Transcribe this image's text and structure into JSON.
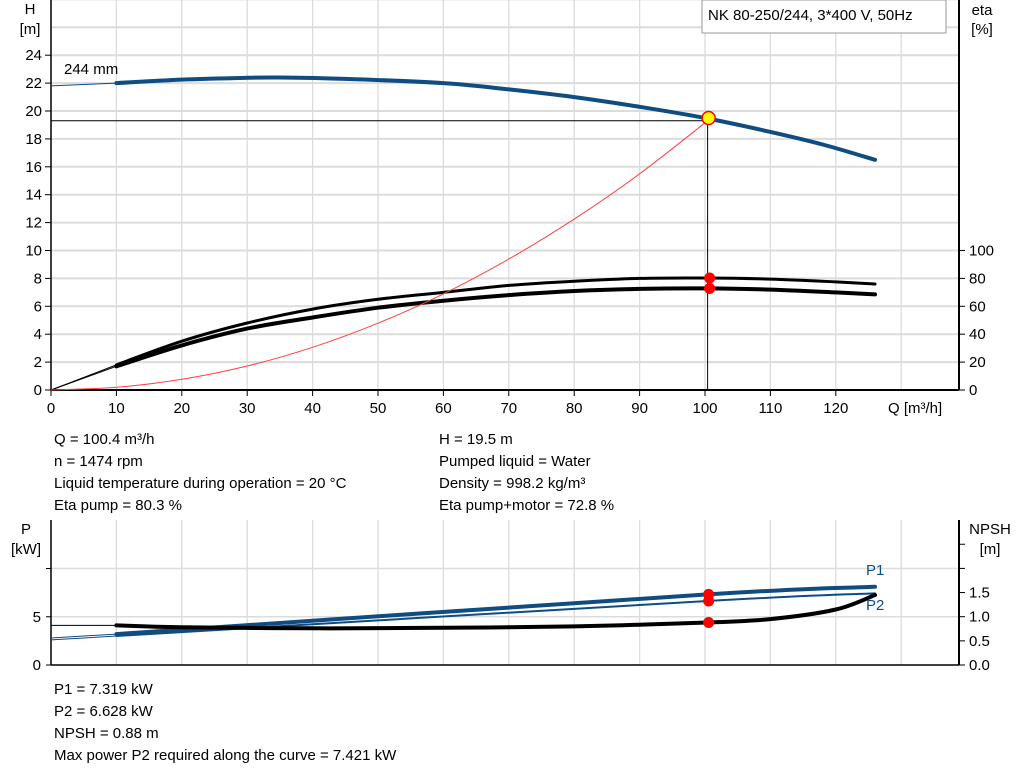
{
  "chart_data": [
    {
      "type": "line",
      "title": "NK 80-250/244, 3*400 V, 50Hz",
      "xlabel": "Q [m³/h]",
      "ylabel_left": [
        "H",
        "[m]"
      ],
      "ylabel_right": [
        "eta",
        "[%]"
      ],
      "xlim": [
        0,
        130
      ],
      "ylim_left": [
        0,
        28
      ],
      "ylim_right": [
        0,
        280
      ],
      "x_ticks": [
        0,
        10,
        20,
        30,
        40,
        50,
        60,
        70,
        80,
        90,
        100,
        110,
        120
      ],
      "y_ticks_left": [
        0,
        2,
        4,
        6,
        8,
        10,
        12,
        14,
        16,
        18,
        20,
        22,
        24
      ],
      "y_ticks_right": [
        0,
        20,
        40,
        60,
        80,
        100
      ],
      "grid": true,
      "curve_label": "244 mm",
      "colors": {
        "head": "#0f4c81",
        "efficiency": "#000000",
        "system": "#ff4040",
        "duty_point": "#ffff00",
        "marker": "#ff0000"
      },
      "series": [
        {
          "key": "head",
          "axis": "left",
          "x": [
            0,
            10,
            20,
            30,
            35,
            45,
            60,
            70,
            80,
            90,
            100,
            110,
            118,
            126
          ],
          "y": [
            21.8,
            22.0,
            22.25,
            22.38,
            22.4,
            22.3,
            22.0,
            21.55,
            21.0,
            20.3,
            19.5,
            18.5,
            17.6,
            16.5
          ]
        },
        {
          "key": "eta_pump",
          "axis": "right",
          "x": [
            0,
            10,
            20,
            30,
            40,
            50,
            60,
            70,
            80,
            90,
            100,
            110,
            120,
            126
          ],
          "y": [
            0,
            18,
            35,
            48,
            58,
            65,
            70,
            75,
            78,
            80,
            80.3,
            79.5,
            77.5,
            76
          ]
        },
        {
          "key": "eta_total",
          "axis": "right",
          "x": [
            0,
            10,
            20,
            30,
            40,
            50,
            60,
            70,
            80,
            90,
            100,
            110,
            120,
            126
          ],
          "y": [
            0,
            17,
            32,
            44,
            52,
            59,
            64,
            68,
            71,
            72.5,
            72.8,
            72,
            70,
            68.5
          ]
        },
        {
          "key": "system",
          "axis": "left",
          "x": [
            0,
            10,
            20,
            30,
            40,
            50,
            60,
            70,
            80,
            90,
            100.4
          ],
          "y": [
            0,
            0.19,
            0.77,
            1.72,
            3.06,
            4.79,
            6.89,
            9.38,
            12.25,
            15.5,
            19.3
          ]
        }
      ],
      "duty_point": {
        "Q": 100.4,
        "H": 19.5,
        "eta_pump": 80.3,
        "eta_total": 72.8
      }
    },
    {
      "type": "line",
      "ylabel_left": [
        "P",
        "[kW]"
      ],
      "ylabel_right": [
        "NPSH",
        "[m]"
      ],
      "xlim": [
        0,
        130
      ],
      "ylim_left": [
        0,
        15
      ],
      "ylim_right": [
        0,
        3.0
      ],
      "y_ticks_left": [
        0,
        5
      ],
      "y_ticks_right": [
        "0.0",
        "0.5",
        "1.0",
        "1.5"
      ],
      "grid": true,
      "series": [
        {
          "name": "P1",
          "axis": "left",
          "x": [
            0,
            10,
            100.4,
            126
          ],
          "y": [
            2.8,
            3.2,
            7.319,
            8.1
          ]
        },
        {
          "name": "P2",
          "axis": "left",
          "x": [
            0,
            10,
            100.4,
            126
          ],
          "y": [
            2.6,
            3.0,
            6.628,
            7.42
          ]
        },
        {
          "key": "npsh",
          "axis": "right",
          "x": [
            0,
            10,
            20,
            40,
            60,
            80,
            100.4,
            110,
            120,
            126
          ],
          "y": [
            0.82,
            0.82,
            0.78,
            0.76,
            0.77,
            0.8,
            0.88,
            0.95,
            1.15,
            1.45
          ]
        }
      ]
    }
  ],
  "info_top": {
    "left": [
      "Q = 100.4 m³/h",
      "n = 1474 rpm",
      "Liquid temperature during operation = 20 °C",
      "Eta pump = 80.3 %"
    ],
    "right": [
      "H = 19.5 m",
      "Pumped liquid = Water",
      "Density = 998.2 kg/m³",
      "Eta pump+motor = 72.8 %"
    ]
  },
  "info_bottom": [
    "P1 = 7.319 kW",
    "P2 = 6.628 kW",
    "NPSH = 0.88 m",
    "Max power P2 required along the curve = 7.421 kW"
  ]
}
